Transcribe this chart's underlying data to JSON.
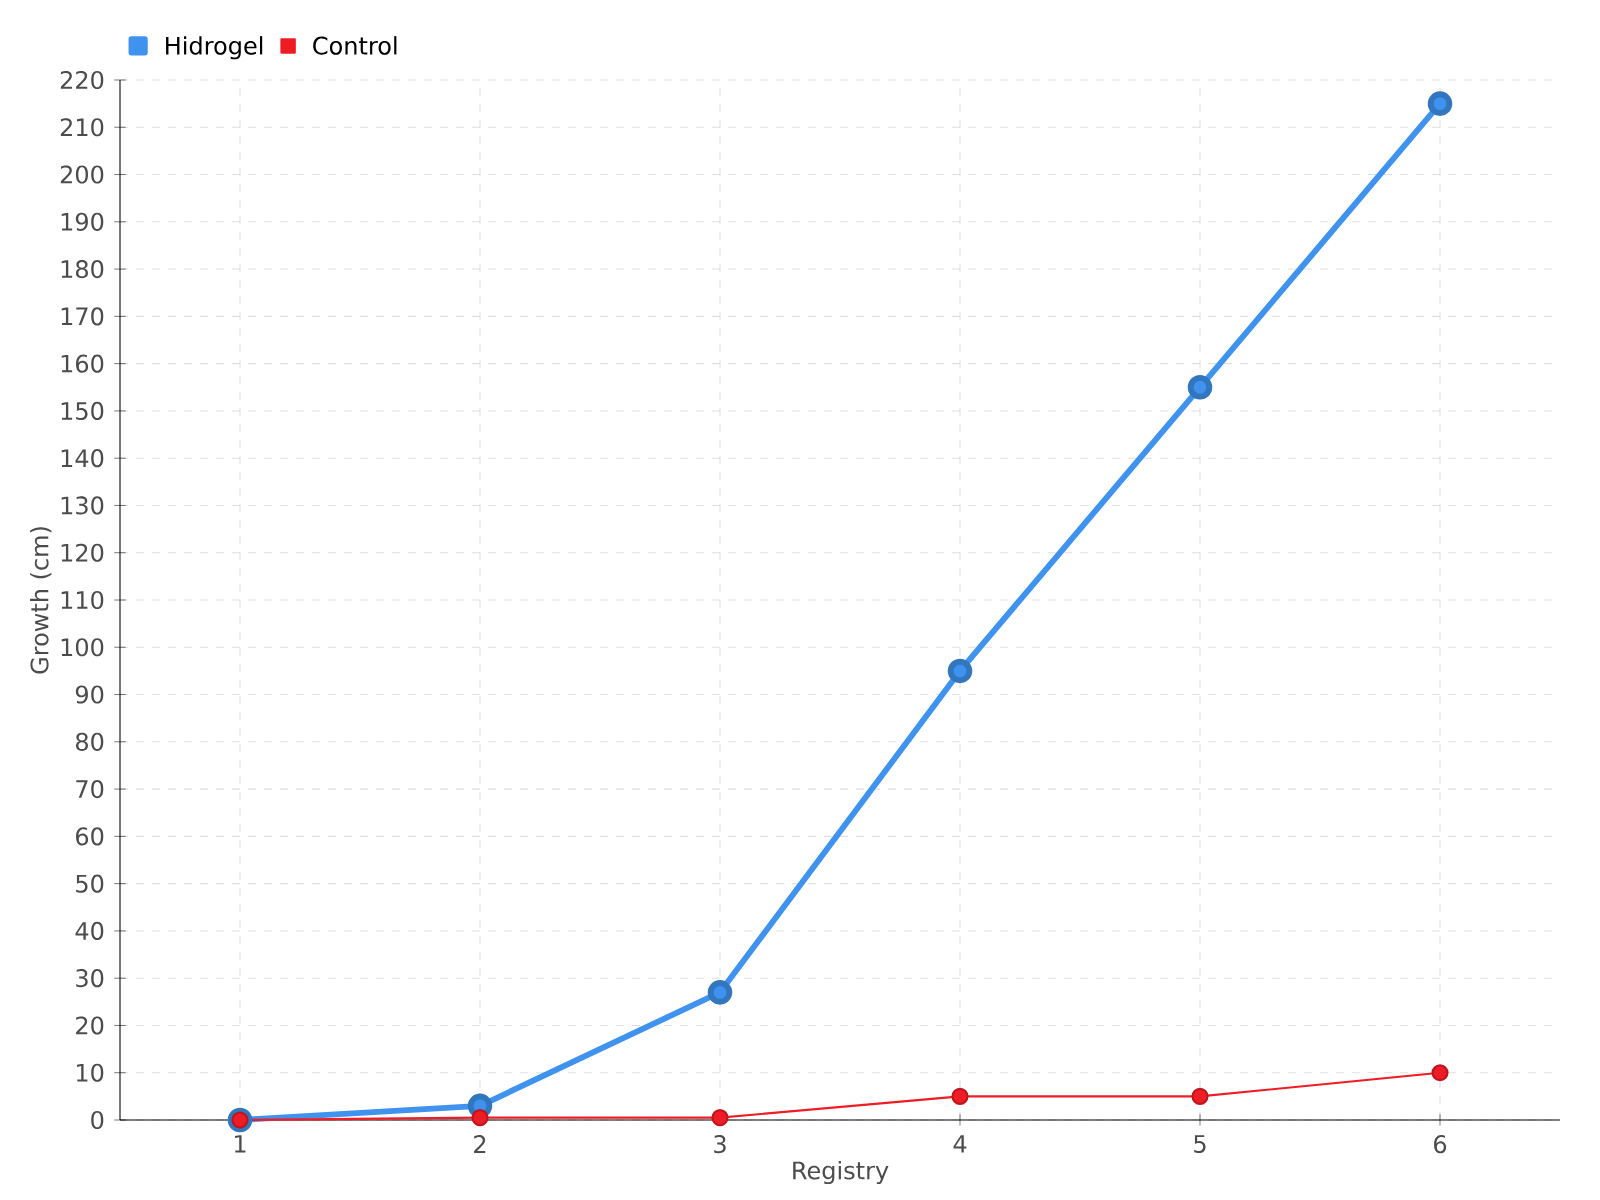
{
  "chart_data": {
    "type": "line",
    "xlabel": "Registry",
    "ylabel": "Growth (cm)",
    "categories": [
      "1",
      "2",
      "3",
      "4",
      "5",
      "6"
    ],
    "series": [
      {
        "name": "Hidrogel",
        "color": "#3f93ee",
        "values": [
          0,
          3,
          27,
          95,
          155,
          215
        ]
      },
      {
        "name": "Control",
        "color": "#ee1c25",
        "values": [
          0,
          0.5,
          0.5,
          5,
          5,
          10
        ]
      }
    ],
    "ylim": [
      0,
      220
    ],
    "yticks": [
      0,
      10,
      20,
      30,
      40,
      50,
      60,
      70,
      80,
      90,
      100,
      110,
      120,
      130,
      140,
      150,
      160,
      170,
      180,
      190,
      200,
      210,
      220
    ],
    "grid": true,
    "legend": "top left",
    "marker": "circle",
    "line_style": "solid"
  }
}
